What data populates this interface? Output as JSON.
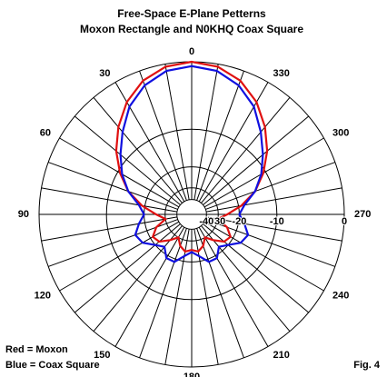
{
  "chart_data": {
    "type": "polar",
    "title": "Free-Space E-Plane Petterns",
    "subtitle": "Moxon Rectangle and N0KHQ Coax Square",
    "radial_scale": "arrl-log",
    "rlim": [
      -40,
      0
    ],
    "rticks": [
      0,
      -10,
      -20,
      -30,
      -40
    ],
    "theta": [
      0,
      10,
      20,
      30,
      40,
      50,
      60,
      70,
      80,
      90,
      100,
      110,
      120,
      130,
      140,
      150,
      160,
      170,
      180,
      190,
      200,
      210,
      220,
      230,
      240,
      250,
      260,
      270,
      280,
      290,
      300,
      310,
      320,
      330,
      340,
      350
    ],
    "thetaticks": [
      0,
      30,
      60,
      90,
      120,
      150,
      180,
      210,
      240,
      270,
      300,
      330
    ],
    "series": [
      {
        "name": "Red = Moxon",
        "color": "#e01010",
        "values": [
          0,
          -0.3,
          -1.2,
          -2.8,
          -5,
          -7.5,
          -10.5,
          -14,
          -19,
          -25,
          -30,
          -24,
          -21,
          -22,
          -26,
          -30,
          -26,
          -24,
          -25,
          -24,
          -26,
          -30,
          -26,
          -22,
          -21,
          -24,
          -30,
          -25,
          -19,
          -14,
          -10.5,
          -7.5,
          -5,
          -2.8,
          -1.2,
          -0.3
        ]
      },
      {
        "name": "Blue = Coax Square",
        "color": "#1010e0",
        "values": [
          -0.5,
          -0.8,
          -1.8,
          -3.5,
          -6,
          -8.5,
          -11,
          -14,
          -18,
          -20,
          -18,
          -16,
          -17,
          -20,
          -22,
          -19,
          -19,
          -22,
          -24,
          -22,
          -19,
          -19,
          -22,
          -20,
          -17,
          -16,
          -18,
          -20,
          -18,
          -14,
          -11,
          -8.5,
          -6,
          -3.5,
          -1.8,
          -0.8
        ]
      }
    ],
    "note": "Fig. 4"
  }
}
